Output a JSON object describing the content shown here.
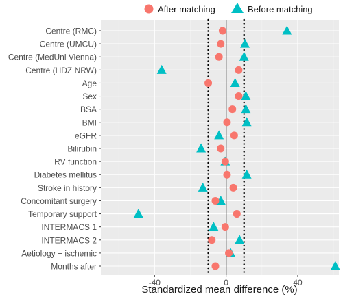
{
  "chart_data": {
    "type": "scatter",
    "xlabel": "Standardized mean difference (%)",
    "ylabel": "",
    "xlim": [
      -70,
      63
    ],
    "x_ticks": [
      "-40",
      "0",
      "40"
    ],
    "x_tick_values": [
      -40,
      0,
      40
    ],
    "reference_lines": {
      "solid": 0,
      "dotted": [
        -10,
        10
      ]
    },
    "grid": true,
    "legend_placement": "top",
    "categories": [
      "Centre (RMC)",
      "Centre (UMCU)",
      "Centre (MedUni Vienna)",
      "Centre (HDZ NRW)",
      "Age",
      "Sex",
      "BSA",
      "BMI",
      "eGFR",
      "Bilirubin",
      "RV function",
      "Diabetes mellitus",
      "Stroke in history",
      "Concomitant surgery",
      "Temporary support",
      "INTERMACS 1",
      "INTERMACS 2",
      "Aetiology − ischemic",
      "Months after"
    ],
    "series": [
      {
        "name": "After matching",
        "color": "#f8766d",
        "marker": "circle",
        "values": [
          -2,
          -3,
          -4,
          7,
          -10,
          7,
          3.5,
          0.5,
          4.5,
          -3,
          -0.5,
          0.5,
          4,
          -6,
          6,
          -0.5,
          -8,
          1.5,
          -6
        ]
      },
      {
        "name": "Before matching",
        "color": "#00bfc4",
        "marker": "triangle",
        "values": [
          34,
          10.5,
          10,
          -36,
          5,
          11,
          11,
          11.5,
          -4,
          -14,
          -0.5,
          11.5,
          -13,
          -3,
          -49,
          -7,
          7.5,
          2.5,
          61
        ]
      }
    ]
  },
  "colors": {
    "panel": "#ebebeb",
    "grid_major": "#ffffff",
    "grid_minor": "#f3f3f3"
  }
}
